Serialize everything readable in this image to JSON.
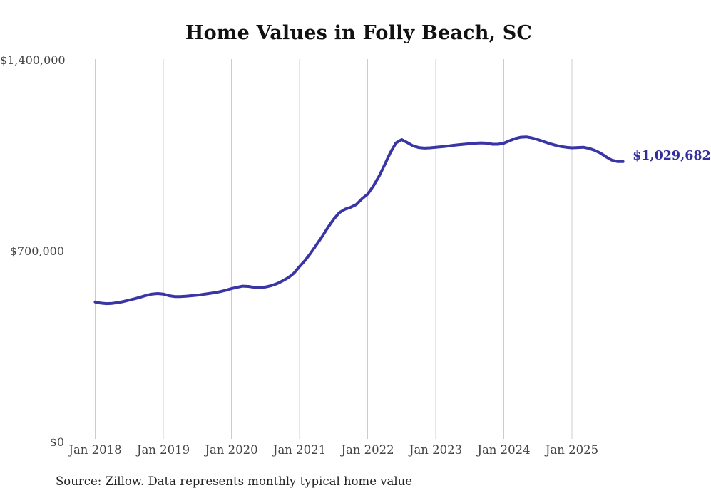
{
  "title": "Home Values in Folly Beach, SC",
  "source_note": "Source: Zillow. Data represents monthly typical home value",
  "end_label": "$1,029,682",
  "colors": {
    "line": "#3a35a5",
    "end_label": "#332e9e",
    "grid": "#cccccc",
    "axis_text": "#444444",
    "title_text": "#111111",
    "source_text": "#222222",
    "background": "#ffffff"
  },
  "chart_data": {
    "type": "line",
    "title": "Home Values in Folly Beach, SC",
    "xlabel": "",
    "ylabel": "",
    "x_tick_labels": [
      "Jan 2018",
      "Jan 2019",
      "Jan 2020",
      "Jan 2021",
      "Jan 2022",
      "Jan 2023",
      "Jan 2024",
      "Jan 2025"
    ],
    "y_tick_labels": [
      "$0",
      "$700,000",
      "$1,400,000"
    ],
    "ylim": [
      0,
      1400000
    ],
    "grid": "vertical-only",
    "legend": "none",
    "series": [
      {
        "name": "Typical home value",
        "unit": "USD",
        "interval": "monthly",
        "start": "Jan 2018",
        "end": "Oct 2025",
        "last_value_label": "$1,029,682",
        "values": [
          515000,
          511000,
          509000,
          510000,
          513000,
          517000,
          522000,
          527000,
          533000,
          539000,
          544000,
          546000,
          544000,
          538000,
          535000,
          535000,
          536000,
          538000,
          540000,
          543000,
          546000,
          549000,
          553000,
          558000,
          564000,
          569000,
          573000,
          572000,
          569000,
          568000,
          570000,
          575000,
          582000,
          592000,
          604000,
          620000,
          645000,
          668000,
          695000,
          725000,
          755000,
          788000,
          818000,
          842000,
          855000,
          862000,
          872000,
          893000,
          910000,
          940000,
          975000,
          1018000,
          1062000,
          1098000,
          1110000,
          1099000,
          1087000,
          1081000,
          1079000,
          1080000,
          1082000,
          1084000,
          1086000,
          1089000,
          1091000,
          1093000,
          1095000,
          1097000,
          1098000,
          1097000,
          1093000,
          1093000,
          1097000,
          1106000,
          1114000,
          1119000,
          1120000,
          1116000,
          1110000,
          1103000,
          1096000,
          1090000,
          1085000,
          1082000,
          1080000,
          1081000,
          1082000,
          1078000,
          1071000,
          1061000,
          1047000,
          1035000,
          1030000,
          1029682
        ]
      }
    ]
  }
}
